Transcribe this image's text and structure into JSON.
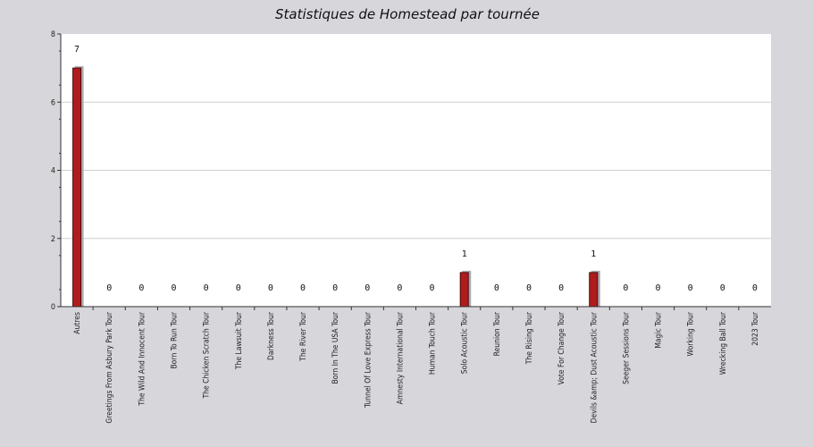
{
  "chart_data": {
    "type": "bar",
    "title": "Statistiques de Homestead par tournée",
    "xlabel": "",
    "ylabel": "",
    "ylim": [
      0,
      8
    ],
    "yticks": [
      0,
      2,
      4,
      6,
      8
    ],
    "grid": true,
    "categories": [
      "Autres",
      "Greetings From Asbury Park Tour",
      "The Wild And Innocent Tour",
      "Born To Run Tour",
      "The Chicken Scratch Tour",
      "The Lawsuit Tour",
      "Darkness Tour",
      "The River Tour",
      "Born In The USA Tour",
      "Tunnel Of Love Express Tour",
      "Amnesty International Tour",
      "Human Touch Tour",
      "Solo Acoustic Tour",
      "Reunion Tour",
      "The Rising Tour",
      "Vote For Change Tour",
      "Devils &amp; Dust Acoustic Tour",
      "Seeger Sessions Tour",
      "Magic Tour",
      "Working Tour",
      "Wrecking Ball Tour",
      "2023 Tour"
    ],
    "values": [
      7,
      0,
      0,
      0,
      0,
      0,
      0,
      0,
      0,
      0,
      0,
      0,
      1,
      0,
      0,
      0,
      1,
      0,
      0,
      0,
      0,
      0
    ],
    "colors": {
      "bar": "#b01c1c",
      "bar_border": "#4a0a0a",
      "shadow": "#a9a8ad",
      "plot_bg": "#ffffff",
      "page_bg": "#d7d6db",
      "grid": "#cfcfcf"
    }
  }
}
